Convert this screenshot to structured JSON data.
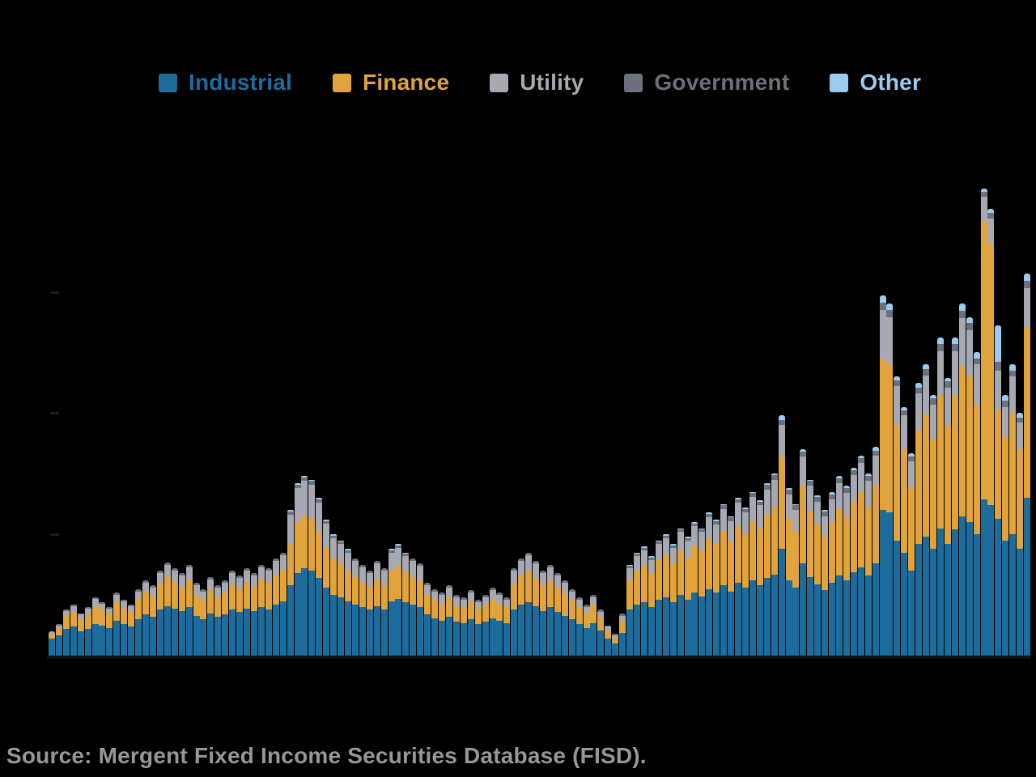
{
  "legend": {
    "items": [
      {
        "label": "Industrial",
        "color": "#1c6c9e"
      },
      {
        "label": "Finance",
        "color": "#e1a33c"
      },
      {
        "label": "Utility",
        "color": "#a6a8b2"
      },
      {
        "label": "Government",
        "color": "#6c717e"
      },
      {
        "label": "Other",
        "color": "#9ccbef"
      }
    ]
  },
  "source_note": "Source: Mergent Fixed Income Securities Database (FISD).",
  "chart_data": {
    "type": "bar",
    "stacked": true,
    "title": "",
    "xlabel": "",
    "ylabel": "",
    "legend_position": "top",
    "grid": false,
    "notes": "Axis tick labels are not legible in the image (rendered black on black); values are estimated in units where one y-gridline interval = 100. Three unlabeled y-ticks are visible; x-axis categories are not visible.",
    "ylim": [
      0,
      400
    ],
    "y_ticks_estimated": [
      100,
      200,
      300
    ],
    "n_bars": 136,
    "series_bottom_to_top": [
      "Industrial",
      "Finance",
      "Utility",
      "Government",
      "Other"
    ],
    "series_colors": [
      "#1c6c9e",
      "#e1a33c",
      "#a6a8b2",
      "#6c717e",
      "#9ccbef"
    ],
    "bars": [
      [
        14,
        4,
        2,
        0,
        0
      ],
      [
        17,
        6,
        2,
        1,
        0
      ],
      [
        22,
        11,
        4,
        1,
        0
      ],
      [
        24,
        12,
        5,
        1,
        0
      ],
      [
        20,
        10,
        4,
        1,
        0
      ],
      [
        22,
        12,
        5,
        1,
        0
      ],
      [
        26,
        15,
        6,
        1,
        0
      ],
      [
        25,
        13,
        5,
        1,
        0
      ],
      [
        23,
        11,
        5,
        1,
        0
      ],
      [
        29,
        15,
        6,
        2,
        0
      ],
      [
        26,
        13,
        6,
        1,
        0
      ],
      [
        24,
        12,
        5,
        1,
        0
      ],
      [
        30,
        17,
        6,
        2,
        0
      ],
      [
        34,
        19,
        7,
        2,
        0
      ],
      [
        32,
        17,
        7,
        2,
        0
      ],
      [
        38,
        21,
        9,
        2,
        0
      ],
      [
        41,
        24,
        10,
        2,
        0
      ],
      [
        39,
        22,
        9,
        2,
        0
      ],
      [
        37,
        20,
        9,
        2,
        0
      ],
      [
        40,
        23,
        10,
        2,
        0
      ],
      [
        33,
        17,
        8,
        2,
        0
      ],
      [
        30,
        16,
        7,
        2,
        0
      ],
      [
        35,
        19,
        9,
        2,
        0
      ],
      [
        32,
        16,
        8,
        2,
        0
      ],
      [
        34,
        18,
        8,
        2,
        0
      ],
      [
        38,
        21,
        9,
        2,
        0
      ],
      [
        36,
        19,
        9,
        2,
        0
      ],
      [
        39,
        22,
        9,
        2,
        0
      ],
      [
        37,
        20,
        9,
        2,
        0
      ],
      [
        40,
        23,
        10,
        2,
        0
      ],
      [
        38,
        22,
        10,
        2,
        0
      ],
      [
        42,
        25,
        11,
        2,
        0
      ],
      [
        45,
        26,
        12,
        2,
        0
      ],
      [
        58,
        34,
        24,
        3,
        1
      ],
      [
        68,
        42,
        28,
        3,
        1
      ],
      [
        72,
        44,
        28,
        3,
        1
      ],
      [
        70,
        43,
        28,
        3,
        1
      ],
      [
        64,
        38,
        24,
        3,
        1
      ],
      [
        56,
        33,
        20,
        2,
        1
      ],
      [
        50,
        30,
        17,
        2,
        1
      ],
      [
        48,
        28,
        16,
        2,
        1
      ],
      [
        45,
        26,
        14,
        2,
        1
      ],
      [
        42,
        23,
        13,
        2,
        0
      ],
      [
        40,
        21,
        12,
        2,
        0
      ],
      [
        38,
        19,
        11,
        2,
        0
      ],
      [
        41,
        22,
        13,
        2,
        0
      ],
      [
        38,
        20,
        12,
        2,
        0
      ],
      [
        45,
        26,
        14,
        2,
        1
      ],
      [
        47,
        27,
        15,
        2,
        1
      ],
      [
        44,
        25,
        13,
        2,
        1
      ],
      [
        42,
        23,
        13,
        2,
        0
      ],
      [
        40,
        22,
        12,
        2,
        0
      ],
      [
        34,
        16,
        8,
        2,
        0
      ],
      [
        31,
        15,
        7,
        2,
        0
      ],
      [
        29,
        14,
        7,
        2,
        0
      ],
      [
        32,
        16,
        8,
        2,
        0
      ],
      [
        28,
        13,
        7,
        2,
        0
      ],
      [
        27,
        13,
        6,
        2,
        0
      ],
      [
        30,
        15,
        7,
        2,
        0
      ],
      [
        26,
        12,
        6,
        2,
        0
      ],
      [
        28,
        14,
        6,
        2,
        0
      ],
      [
        31,
        16,
        7,
        2,
        0
      ],
      [
        29,
        14,
        7,
        2,
        0
      ],
      [
        27,
        13,
        6,
        2,
        0
      ],
      [
        38,
        21,
        11,
        2,
        0
      ],
      [
        42,
        24,
        12,
        2,
        0
      ],
      [
        44,
        26,
        13,
        2,
        0
      ],
      [
        41,
        23,
        12,
        2,
        0
      ],
      [
        37,
        21,
        10,
        2,
        0
      ],
      [
        40,
        22,
        11,
        2,
        0
      ],
      [
        36,
        20,
        10,
        2,
        0
      ],
      [
        33,
        18,
        9,
        2,
        0
      ],
      [
        30,
        16,
        7,
        2,
        0
      ],
      [
        26,
        14,
        6,
        2,
        0
      ],
      [
        23,
        12,
        5,
        2,
        0
      ],
      [
        27,
        15,
        6,
        2,
        0
      ],
      [
        21,
        11,
        4,
        2,
        0
      ],
      [
        14,
        7,
        3,
        1,
        0
      ],
      [
        10,
        5,
        2,
        1,
        0
      ],
      [
        19,
        10,
        4,
        2,
        0
      ],
      [
        38,
        25,
        9,
        2,
        1
      ],
      [
        42,
        29,
        11,
        2,
        1
      ],
      [
        44,
        31,
        12,
        2,
        1
      ],
      [
        40,
        28,
        11,
        2,
        1
      ],
      [
        46,
        33,
        13,
        2,
        1
      ],
      [
        48,
        35,
        14,
        2,
        1
      ],
      [
        44,
        32,
        13,
        2,
        1
      ],
      [
        50,
        37,
        15,
        2,
        1
      ],
      [
        46,
        35,
        14,
        2,
        1
      ],
      [
        52,
        39,
        16,
        2,
        1
      ],
      [
        49,
        38,
        15,
        2,
        1
      ],
      [
        55,
        42,
        17,
        3,
        1
      ],
      [
        52,
        40,
        16,
        3,
        1
      ],
      [
        58,
        45,
        18,
        3,
        1
      ],
      [
        53,
        41,
        17,
        3,
        1
      ],
      [
        60,
        47,
        19,
        3,
        1
      ],
      [
        56,
        44,
        18,
        3,
        1
      ],
      [
        62,
        49,
        20,
        3,
        1
      ],
      [
        58,
        47,
        19,
        3,
        1
      ],
      [
        64,
        52,
        21,
        4,
        1
      ],
      [
        67,
        55,
        23,
        4,
        1
      ],
      [
        88,
        76,
        26,
        4,
        4
      ],
      [
        62,
        51,
        20,
        4,
        1
      ],
      [
        56,
        46,
        18,
        4,
        1
      ],
      [
        76,
        64,
        24,
        4,
        2
      ],
      [
        65,
        54,
        21,
        4,
        1
      ],
      [
        59,
        49,
        19,
        4,
        1
      ],
      [
        54,
        44,
        17,
        4,
        1
      ],
      [
        60,
        50,
        19,
        4,
        2
      ],
      [
        66,
        55,
        21,
        4,
        2
      ],
      [
        62,
        52,
        20,
        4,
        2
      ],
      [
        69,
        58,
        22,
        4,
        2
      ],
      [
        73,
        62,
        24,
        4,
        2
      ],
      [
        66,
        56,
        22,
        4,
        2
      ],
      [
        76,
        64,
        25,
        4,
        3
      ],
      [
        120,
        125,
        40,
        6,
        6
      ],
      [
        118,
        122,
        39,
        6,
        5
      ],
      [
        95,
        95,
        32,
        5,
        3
      ],
      [
        85,
        85,
        28,
        4,
        3
      ],
      [
        70,
        68,
        22,
        4,
        3
      ],
      [
        92,
        94,
        30,
        5,
        4
      ],
      [
        98,
        101,
        32,
        5,
        4
      ],
      [
        88,
        90,
        29,
        5,
        3
      ],
      [
        105,
        110,
        36,
        6,
        5
      ],
      [
        92,
        98,
        31,
        5,
        3
      ],
      [
        104,
        111,
        36,
        6,
        5
      ],
      [
        115,
        124,
        39,
        6,
        6
      ],
      [
        110,
        120,
        38,
        6,
        5
      ],
      [
        100,
        106,
        34,
        5,
        5
      ],
      [
        129,
        229,
        20,
        4,
        3
      ],
      [
        124,
        216,
        20,
        5,
        3
      ],
      [
        113,
        90,
        32,
        7,
        30
      ],
      [
        95,
        85,
        25,
        5,
        5
      ],
      [
        100,
        100,
        30,
        5,
        5
      ],
      [
        88,
        82,
        22,
        4,
        4
      ],
      [
        130,
        140,
        33,
        6,
        6
      ]
    ]
  }
}
